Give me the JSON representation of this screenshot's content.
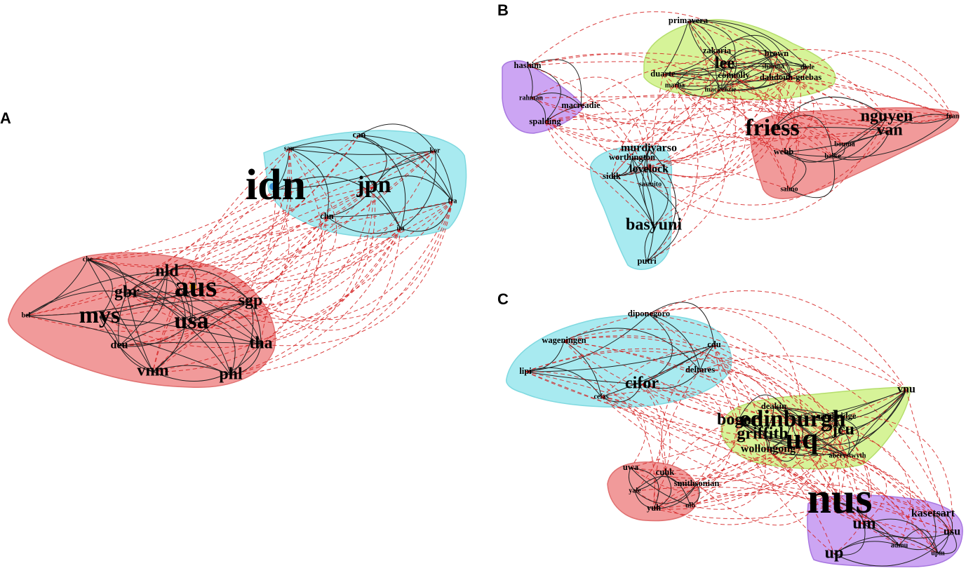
{
  "colors": {
    "cyan": "#9ee8ee",
    "red": "#ef8f8f",
    "green": "#d2f28d",
    "purple": "#c79bf2",
    "hull_stroke_cyan": "#7fd9e0",
    "hull_stroke_red": "#e07070",
    "hull_stroke_green": "#b5de6c",
    "hull_stroke_purple": "#a877e0"
  },
  "panels": [
    {
      "letter": "A",
      "clusters": [
        {
          "color": "cyan",
          "nodes": [
            "can",
            "sau",
            "kor",
            "idn",
            "jpn",
            "chn",
            "fra",
            "ita"
          ]
        },
        {
          "color": "red",
          "nodes": [
            "che",
            "nld",
            "aus",
            "gbr",
            "sgp",
            "bel",
            "mys",
            "usa",
            "deu",
            "tha",
            "vnm",
            "phl"
          ]
        }
      ],
      "nodes": [
        {
          "id": "can",
          "label": "can",
          "size": "small"
        },
        {
          "id": "sau",
          "label": "sau",
          "size": "tiny"
        },
        {
          "id": "kor",
          "label": "kor",
          "size": "tiny"
        },
        {
          "id": "idn",
          "label": "idn",
          "size": "huge",
          "marker": "#3b8fd4"
        },
        {
          "id": "jpn",
          "label": "jpn",
          "size": "xlarge"
        },
        {
          "id": "chn",
          "label": "chn",
          "size": "small"
        },
        {
          "id": "fra",
          "label": "fra",
          "size": "tiny"
        },
        {
          "id": "ita",
          "label": "ita",
          "size": "tiny"
        },
        {
          "id": "che",
          "label": "che",
          "size": "tiny"
        },
        {
          "id": "nld",
          "label": "nld",
          "size": "large"
        },
        {
          "id": "aus",
          "label": "aus",
          "size": "xxlarge",
          "marker": "#e8a020"
        },
        {
          "id": "gbr",
          "label": "gbr",
          "size": "large"
        },
        {
          "id": "sgp",
          "label": "sgp",
          "size": "large"
        },
        {
          "id": "bel",
          "label": "bel",
          "size": "tiny"
        },
        {
          "id": "mys",
          "label": "mys",
          "size": "xlarge"
        },
        {
          "id": "usa",
          "label": "usa",
          "size": "xlarge"
        },
        {
          "id": "deu",
          "label": "deu",
          "size": "medium"
        },
        {
          "id": "tha",
          "label": "tha",
          "size": "large"
        },
        {
          "id": "vnm",
          "label": "vnm",
          "size": "large"
        },
        {
          "id": "phl",
          "label": "phl",
          "size": "large"
        }
      ]
    },
    {
      "letter": "B",
      "clusters": [
        {
          "color": "green",
          "nodes": [
            "primavera",
            "zakaria",
            "brown",
            "lee",
            "sharma",
            "diele",
            "duarte",
            "connolly",
            "dahdouh-guebas",
            "marba",
            "mackenzie"
          ]
        },
        {
          "color": "purple",
          "nodes": [
            "hashim",
            "rahman",
            "macreadie",
            "spalding"
          ]
        },
        {
          "color": "red",
          "nodes": [
            "friess",
            "nguyen",
            "fran",
            "van",
            "bouma",
            "webb",
            "balke",
            "salmo"
          ]
        },
        {
          "color": "cyan",
          "nodes": [
            "murdiyarso",
            "worthington",
            "lovelock",
            "sidik",
            "sasmito",
            "basyuni",
            "putri"
          ]
        }
      ],
      "nodes": [
        {
          "id": "primavera",
          "label": "primavera",
          "size": "small"
        },
        {
          "id": "zakaria",
          "label": "zakaria",
          "size": "small"
        },
        {
          "id": "brown",
          "label": "brown",
          "size": "small"
        },
        {
          "id": "lee",
          "label": "lee",
          "size": "large"
        },
        {
          "id": "sharma",
          "label": "sharma",
          "size": "tiny"
        },
        {
          "id": "diele",
          "label": "diele",
          "size": "tiny"
        },
        {
          "id": "hashim",
          "label": "hashim",
          "size": "small"
        },
        {
          "id": "duarte",
          "label": "duarte",
          "size": "small"
        },
        {
          "id": "connolly",
          "label": "connolly",
          "size": "small"
        },
        {
          "id": "dahdouh-guebas",
          "label": "dahdouh-guebas",
          "size": "small"
        },
        {
          "id": "marba",
          "label": "marba",
          "size": "tiny"
        },
        {
          "id": "mackenzie",
          "label": "mackenzie",
          "size": "tiny"
        },
        {
          "id": "rahman",
          "label": "rahman",
          "size": "tiny"
        },
        {
          "id": "macreadie",
          "label": "macreadie",
          "size": "small"
        },
        {
          "id": "friess",
          "label": "friess",
          "size": "xlarge"
        },
        {
          "id": "nguyen",
          "label": "nguyen",
          "size": "large"
        },
        {
          "id": "fran",
          "label": "fran",
          "size": "tiny"
        },
        {
          "id": "spalding",
          "label": "spalding",
          "size": "small"
        },
        {
          "id": "van",
          "label": "van",
          "size": "large"
        },
        {
          "id": "murdiyarso",
          "label": "murdiyarso",
          "size": "medium"
        },
        {
          "id": "bouma",
          "label": "bouma",
          "size": "tiny"
        },
        {
          "id": "webb",
          "label": "webb",
          "size": "small"
        },
        {
          "id": "balke",
          "label": "balke",
          "size": "tiny"
        },
        {
          "id": "worthington",
          "label": "worthington",
          "size": "small"
        },
        {
          "id": "lovelock",
          "label": "lovelock",
          "size": "medium"
        },
        {
          "id": "sidik",
          "label": "sidik",
          "size": "small"
        },
        {
          "id": "sasmito",
          "label": "sasmito",
          "size": "tiny"
        },
        {
          "id": "salmo",
          "label": "salmo",
          "size": "tiny"
        },
        {
          "id": "basyuni",
          "label": "basyuni",
          "size": "large"
        },
        {
          "id": "putri",
          "label": "putri",
          "size": "small"
        }
      ]
    },
    {
      "letter": "C",
      "clusters": [
        {
          "color": "cyan",
          "nodes": [
            "diponegoro",
            "wageningen",
            "cdu",
            "lipi",
            "deltares",
            "cifor",
            "cefas"
          ]
        },
        {
          "color": "green",
          "nodes": [
            "vnu",
            "deakin",
            "cambridge",
            "bogor",
            "edinburgh",
            "jcu",
            "griffith",
            "uq",
            "wollongong",
            "aberystwyth"
          ]
        },
        {
          "color": "red",
          "nodes": [
            "uwa",
            "cuhk",
            "smithsonian",
            "yale",
            "yuh",
            "ulb"
          ]
        },
        {
          "color": "purple",
          "nodes": [
            "nus",
            "kasetsart",
            "um",
            "usu",
            "up",
            "admu",
            "upm"
          ]
        }
      ],
      "nodes": [
        {
          "id": "diponegoro",
          "label": "diponegoro",
          "size": "small"
        },
        {
          "id": "wageningen",
          "label": "wageningen",
          "size": "small"
        },
        {
          "id": "cdu",
          "label": "cdu",
          "size": "small"
        },
        {
          "id": "lipi",
          "label": "lipi",
          "size": "small"
        },
        {
          "id": "deltares",
          "label": "deltares",
          "size": "small"
        },
        {
          "id": "cifor",
          "label": "cifor",
          "size": "large"
        },
        {
          "id": "vnu",
          "label": "vnu",
          "size": "medium"
        },
        {
          "id": "cefas",
          "label": "cefas",
          "size": "tiny"
        },
        {
          "id": "deakin",
          "label": "deakin",
          "size": "small"
        },
        {
          "id": "cambridge",
          "label": "cambridge",
          "size": "small"
        },
        {
          "id": "bogor",
          "label": "bogor",
          "size": "large"
        },
        {
          "id": "edinburgh",
          "label": "edinburgh",
          "size": "xlarge"
        },
        {
          "id": "jcu",
          "label": "jcu",
          "size": "large"
        },
        {
          "id": "griffith",
          "label": "griffith",
          "size": "large"
        },
        {
          "id": "uq",
          "label": "uq",
          "size": "xxlarge"
        },
        {
          "id": "wollongong",
          "label": "wollongong",
          "size": "medium"
        },
        {
          "id": "aberystwyth",
          "label": "aberystwyth",
          "size": "tiny"
        },
        {
          "id": "uwa",
          "label": "uwa",
          "size": "small"
        },
        {
          "id": "cuhk",
          "label": "cuhk",
          "size": "small"
        },
        {
          "id": "smithsonian",
          "label": "smithsonian",
          "size": "small"
        },
        {
          "id": "yale",
          "label": "yale",
          "size": "tiny"
        },
        {
          "id": "yuh",
          "label": "yuh",
          "size": "small"
        },
        {
          "id": "ulb",
          "label": "ulb",
          "size": "tiny"
        },
        {
          "id": "nus",
          "label": "nus",
          "size": "huge",
          "marker": "#f2e21a"
        },
        {
          "id": "kasetsart",
          "label": "kasetsart",
          "size": "medium"
        },
        {
          "id": "um",
          "label": "um",
          "size": "large"
        },
        {
          "id": "usu",
          "label": "usu",
          "size": "medium"
        },
        {
          "id": "up",
          "label": "up",
          "size": "large"
        },
        {
          "id": "admu",
          "label": "admu",
          "size": "tiny"
        },
        {
          "id": "upm",
          "label": "upm",
          "size": "tiny"
        }
      ]
    }
  ]
}
